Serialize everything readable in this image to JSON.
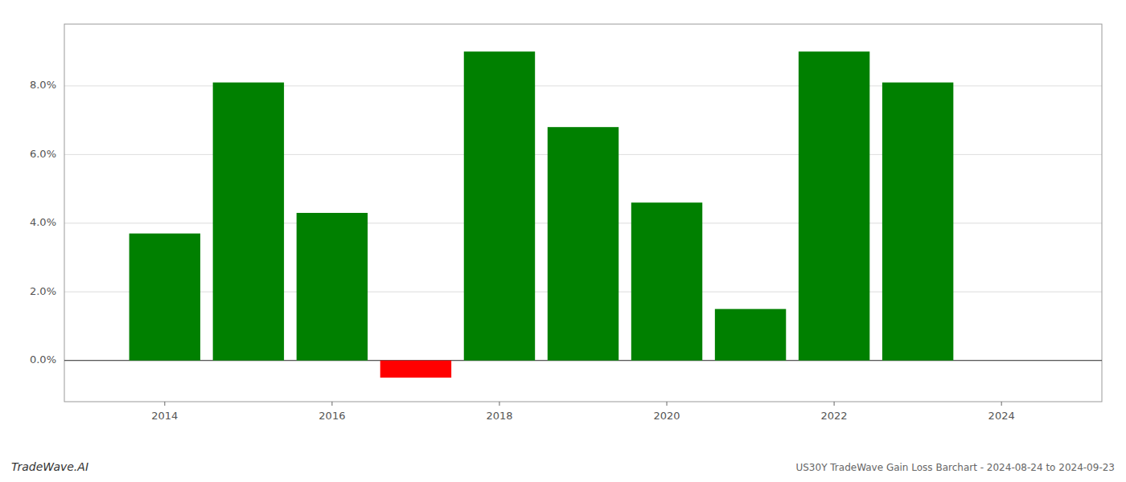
{
  "chart_data": {
    "type": "bar",
    "title": "US30Y TradeWave Gain Loss Barchart - 2024-08-24 to 2024-09-23",
    "annotations": [
      "TradeWave.AI"
    ],
    "x": [
      2014,
      2015,
      2016,
      2017,
      2018,
      2019,
      2020,
      2021,
      2022,
      2023
    ],
    "values": [
      0.037,
      0.081,
      0.043,
      -0.005,
      0.09,
      0.068,
      0.046,
      0.015,
      0.09,
      0.081
    ],
    "colors": [
      "#008000",
      "#008000",
      "#008000",
      "#ff0000",
      "#008000",
      "#008000",
      "#008000",
      "#008000",
      "#008000",
      "#008000"
    ],
    "xlim": [
      2012.8,
      2025.2
    ],
    "xticks": [
      2014,
      2016,
      2018,
      2020,
      2022,
      2024
    ],
    "ylim": [
      -0.012,
      0.098
    ],
    "yticks": [
      {
        "value": 0.0,
        "label": "0.0%"
      },
      {
        "value": 0.02,
        "label": "2.0%"
      },
      {
        "value": 0.04,
        "label": "4.0%"
      },
      {
        "value": 0.06,
        "label": "6.0%"
      },
      {
        "value": 0.08,
        "label": "8.0%"
      }
    ],
    "grid": true
  }
}
